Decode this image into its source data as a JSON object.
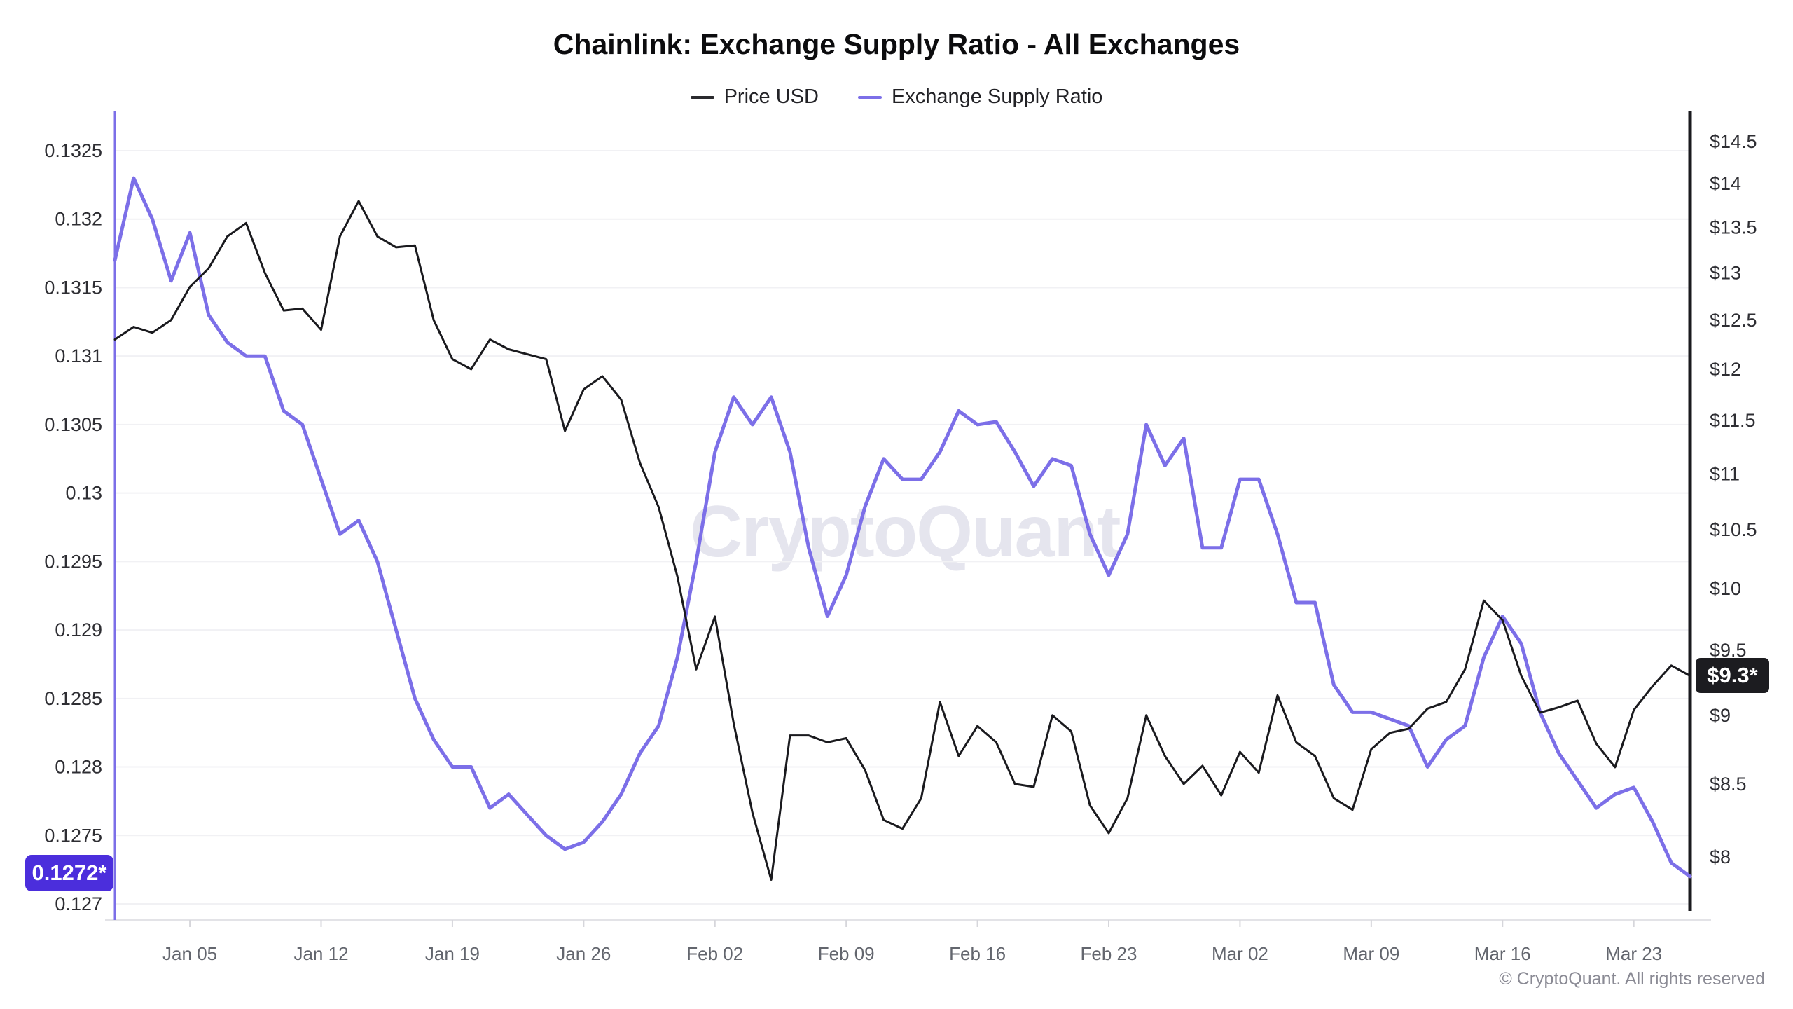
{
  "header": {
    "title": "Chainlink: Exchange Supply Ratio - All Exchanges",
    "legend": [
      {
        "label": "Price USD",
        "color": "#2a2a2e"
      },
      {
        "label": "Exchange Supply Ratio",
        "color": "#7c6fe8"
      }
    ]
  },
  "watermark": "CryptoQuant",
  "badges": {
    "esr_current": "0.1272*",
    "price_current": "$9.3*"
  },
  "footer": {
    "copyright": "© CryptoQuant. All rights reserved"
  },
  "colors": {
    "esr_line": "#7c6fe8",
    "price_line": "#1a1a1e",
    "esr_badge_bg": "#4b2edc",
    "price_badge_bg": "#1c1c20",
    "grid": "#f1f1f4",
    "axis_bottom": "#e3e3e7",
    "tick_mark": "#d6d6db",
    "axis_label": "#2e2e33",
    "date_label": "#63666e"
  },
  "chart_data": {
    "type": "line",
    "title": "Chainlink: Exchange Supply Ratio - All Exchanges",
    "legend_position": "top",
    "grid": "horizontal-only",
    "x": {
      "start": "Jan 01",
      "end": "Mar 26",
      "num_days": 85,
      "tick_labels": [
        "Jan 05",
        "Jan 12",
        "Jan 19",
        "Jan 26",
        "Feb 02",
        "Feb 09",
        "Feb 16",
        "Feb 23",
        "Mar 02",
        "Mar 09",
        "Mar 16",
        "Mar 23"
      ],
      "tick_day_indices": [
        4,
        11,
        18,
        25,
        32,
        39,
        46,
        53,
        60,
        67,
        74,
        81
      ]
    },
    "y_left": {
      "name": "Exchange Supply Ratio",
      "scale": "linear",
      "range": [
        0.127,
        0.1325
      ],
      "tick_labels": [
        "0.1325",
        "0.132",
        "0.1315",
        "0.131",
        "0.1305",
        "0.13",
        "0.1295",
        "0.129",
        "0.1285",
        "0.128",
        "0.1275",
        "0.127"
      ],
      "tick_values": [
        0.1325,
        0.132,
        0.1315,
        0.131,
        0.1305,
        0.13,
        0.1295,
        0.129,
        0.1285,
        0.128,
        0.1275,
        0.127
      ],
      "current_value_label": "0.1272*"
    },
    "y_right": {
      "name": "Price USD",
      "scale": "log",
      "range": [
        8,
        14.5
      ],
      "tick_labels": [
        "$14.5",
        "$14",
        "$13.5",
        "$13",
        "$12.5",
        "$12",
        "$11.5",
        "$11",
        "$10.5",
        "$10",
        "$9.5",
        "$9",
        "$8.5",
        "$8"
      ],
      "tick_values": [
        14.5,
        14,
        13.5,
        13,
        12.5,
        12,
        11.5,
        11,
        10.5,
        10,
        9.5,
        9,
        8.5,
        8
      ],
      "current_value_label": "$9.3*"
    },
    "series": [
      {
        "name": "Exchange Supply Ratio",
        "axis": "left",
        "color": "#7c6fe8",
        "width": 5,
        "values": [
          0.1317,
          0.1323,
          0.132,
          0.13155,
          0.1319,
          0.1313,
          0.1311,
          0.131,
          0.131,
          0.1306,
          0.1305,
          0.1301,
          0.1297,
          0.1298,
          0.1295,
          0.129,
          0.1285,
          0.1282,
          0.128,
          0.128,
          0.1277,
          0.1278,
          0.12765,
          0.1275,
          0.1274,
          0.12745,
          0.1276,
          0.1278,
          0.1281,
          0.1283,
          0.1288,
          0.1295,
          0.1303,
          0.1307,
          0.1305,
          0.1307,
          0.1303,
          0.1296,
          0.1291,
          0.1294,
          0.1299,
          0.13025,
          0.1301,
          0.1301,
          0.1303,
          0.1306,
          0.1305,
          0.13052,
          0.1303,
          0.13005,
          0.13025,
          0.1302,
          0.1297,
          0.1294,
          0.1297,
          0.1305,
          0.1302,
          0.1304,
          0.1296,
          0.1296,
          0.1301,
          0.1301,
          0.1297,
          0.1292,
          0.1292,
          0.1286,
          0.1284,
          0.1284,
          0.12835,
          0.1283,
          0.128,
          0.1282,
          0.1283,
          0.1288,
          0.1291,
          0.1289,
          0.1284,
          0.1281,
          0.1279,
          0.1277,
          0.1278,
          0.12785,
          0.1276,
          0.1273,
          0.1272
        ]
      },
      {
        "name": "Price USD",
        "axis": "right",
        "color": "#1a1a1e",
        "width": 3,
        "values": [
          12.3,
          12.43,
          12.37,
          12.5,
          12.85,
          13.05,
          13.4,
          13.55,
          13.0,
          12.6,
          12.62,
          12.4,
          13.4,
          13.8,
          13.4,
          13.28,
          13.3,
          12.5,
          12.1,
          12.0,
          12.3,
          12.2,
          12.15,
          12.1,
          11.4,
          11.8,
          11.93,
          11.7,
          11.1,
          10.7,
          10.1,
          9.35,
          9.77,
          8.94,
          8.3,
          7.85,
          8.85,
          8.85,
          8.8,
          8.83,
          8.6,
          8.25,
          8.19,
          8.4,
          9.1,
          8.7,
          8.92,
          8.8,
          8.5,
          8.48,
          9.0,
          8.88,
          8.35,
          8.16,
          8.4,
          9.0,
          8.7,
          8.5,
          8.63,
          8.42,
          8.73,
          8.58,
          9.15,
          8.8,
          8.7,
          8.4,
          8.32,
          8.75,
          8.87,
          8.9,
          9.05,
          9.1,
          9.35,
          9.9,
          9.74,
          9.3,
          9.02,
          9.06,
          9.11,
          8.79,
          8.62,
          9.04,
          9.22,
          9.38,
          9.3
        ]
      }
    ]
  }
}
